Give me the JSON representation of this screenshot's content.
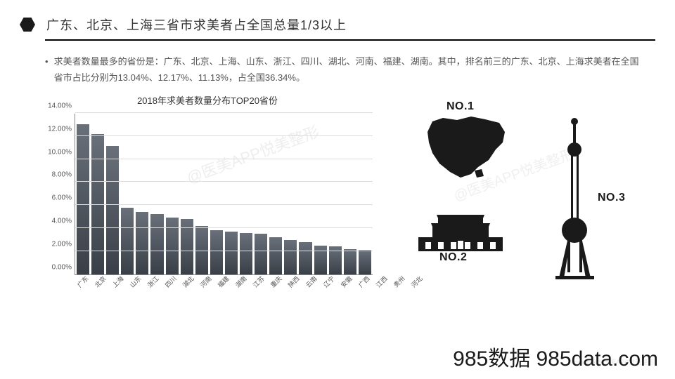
{
  "header": {
    "title": "广东、北京、上海三省市求美者占全国总量1/3以上"
  },
  "body": {
    "bullet": "•",
    "text": "求美者数量最多的省份是：广东、北京、上海、山东、浙江、四川、湖北、河南、福建、湖南。其中，排名前三的广东、北京、上海求美者在全国省市占比分别为13.04%、12.17%、11.13%，占全国36.34%。"
  },
  "chart": {
    "title": "2018年求美者数量分布TOP20省份",
    "type": "bar",
    "y_max": 14.0,
    "y_ticks": [
      0,
      2,
      4,
      6,
      8,
      10,
      12,
      14
    ],
    "y_tick_labels": [
      "0.00%",
      "2.00%",
      "4.00%",
      "6.00%",
      "8.00%",
      "10.00%",
      "12.00%",
      "14.00%"
    ],
    "categories": [
      "广东",
      "北京",
      "上海",
      "山东",
      "浙江",
      "四川",
      "湖北",
      "河南",
      "福建",
      "湖南",
      "江苏",
      "重庆",
      "陕西",
      "云南",
      "辽宁",
      "安徽",
      "广西",
      "江西",
      "贵州",
      "河北"
    ],
    "values": [
      13.04,
      12.17,
      11.13,
      5.8,
      5.4,
      5.2,
      4.9,
      4.8,
      4.2,
      3.8,
      3.7,
      3.6,
      3.5,
      3.2,
      3.0,
      2.8,
      2.5,
      2.4,
      2.2,
      2.1
    ],
    "bar_gradient_top": "#69707a",
    "bar_gradient_bottom": "#3a3f47",
    "grid_color": "#dddddd",
    "axis_color": "#888888",
    "label_fontsize": 10,
    "title_fontsize": 13,
    "background_color": "#ffffff",
    "watermark": "@医美APP悦美整形"
  },
  "ranking": {
    "no1": {
      "label": "NO.1",
      "region": "广东",
      "icon": "guangdong-map"
    },
    "no2": {
      "label": "NO.2",
      "region": "北京",
      "icon": "tiananmen"
    },
    "no3": {
      "label": "NO.3",
      "region": "上海",
      "icon": "oriental-pearl-tower"
    },
    "watermark": "@医美APP悦美整形"
  },
  "footer": {
    "text": "985数据 985data.com",
    "copyright": "copyright@医美APP悦美整形"
  }
}
